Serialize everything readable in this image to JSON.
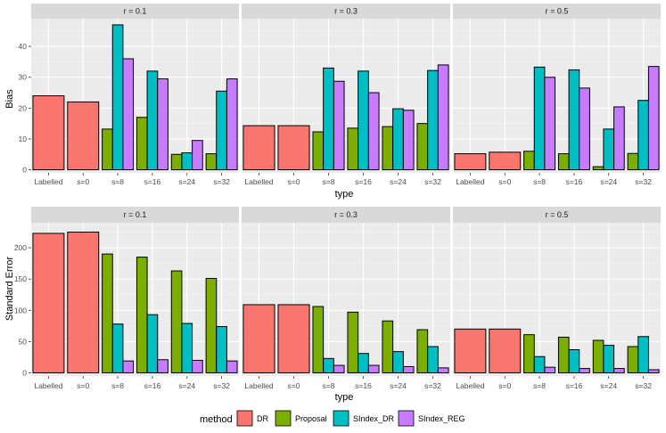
{
  "chart_data": {
    "type": "bar",
    "categories": [
      "Labelled",
      "s=0",
      "s=8",
      "s=16",
      "s=24",
      "s=32"
    ],
    "xlabel": "type",
    "legend": {
      "title": "method",
      "position": "bottom",
      "entries": [
        {
          "name": "DR",
          "color": "#F8766D"
        },
        {
          "name": "Proposal",
          "color": "#7CAE00"
        },
        {
          "name": "SIndex_DR",
          "color": "#00BFC4"
        },
        {
          "name": "SIndex_REG",
          "color": "#C77CFF"
        }
      ]
    },
    "rows": [
      {
        "ylabel": "Bias",
        "ylim": [
          -1,
          49
        ],
        "yticks": [
          0,
          10,
          20,
          30,
          40
        ],
        "panels": [
          {
            "strip": "r = 0.1",
            "DR": [
              24,
              22
            ],
            "Proposal": [
              13.2,
              17,
              5,
              5.2
            ],
            "SIndex_DR": [
              47,
              32,
              5.5,
              25.5
            ],
            "SIndex_REG": [
              36,
              29.5,
              9.5,
              29.5
            ]
          },
          {
            "strip": "r = 0.3",
            "DR": [
              14.3,
              14.3
            ],
            "Proposal": [
              12.3,
              13.5,
              14,
              15
            ],
            "SIndex_DR": [
              33,
              32,
              19.8,
              32.2
            ],
            "SIndex_REG": [
              28.7,
              25,
              19.3,
              34
            ]
          },
          {
            "strip": "r = 0.5",
            "DR": [
              5.2,
              5.7
            ],
            "Proposal": [
              6,
              5.2,
              1,
              5.3
            ],
            "SIndex_DR": [
              33.3,
              32.4,
              13.2,
              22.5
            ],
            "SIndex_REG": [
              30,
              26.5,
              20.4,
              33.5
            ]
          }
        ]
      },
      {
        "ylabel": "Standard Error",
        "ylim": [
          -5,
          240
        ],
        "yticks": [
          0,
          50,
          100,
          150,
          200
        ],
        "panels": [
          {
            "strip": "r = 0.1",
            "DR": [
              223,
              225
            ],
            "Proposal": [
              190,
              185,
              163,
              151
            ],
            "SIndex_DR": [
              78,
              93,
              79,
              74
            ],
            "SIndex_REG": [
              19,
              21,
              20,
              19
            ]
          },
          {
            "strip": "r = 0.3",
            "DR": [
              109,
              109
            ],
            "Proposal": [
              106,
              97,
              83,
              69
            ],
            "SIndex_DR": [
              23,
              31,
              34,
              42
            ],
            "SIndex_REG": [
              12,
              12,
              10,
              8
            ]
          },
          {
            "strip": "r = 0.5",
            "DR": [
              70,
              70
            ],
            "Proposal": [
              61,
              57,
              52,
              42
            ],
            "SIndex_DR": [
              26,
              37,
              44,
              58
            ],
            "SIndex_REG": [
              9,
              7,
              7,
              5
            ]
          }
        ]
      }
    ]
  }
}
